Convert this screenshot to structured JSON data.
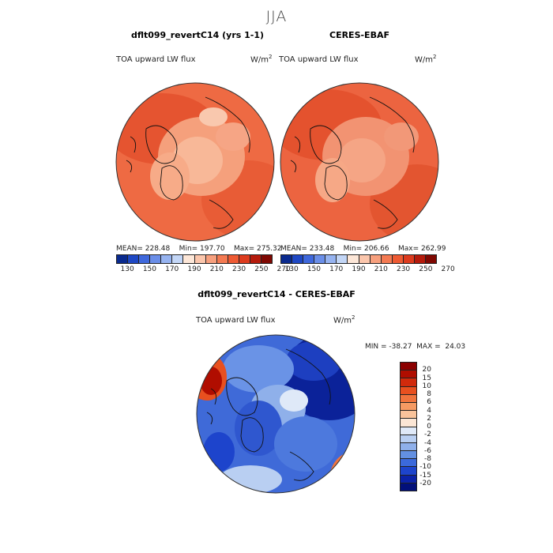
{
  "season": "JJA",
  "chart_data": [
    {
      "type": "heatmap",
      "projection": "north-polar-stereographic",
      "title": "dflt099_revertC14 (yrs 1-1)",
      "variable": "TOA upward LW flux",
      "units": "W/m",
      "units_sup": "2",
      "stats": {
        "mean": 228.48,
        "min": 197.7,
        "max": 275.32
      },
      "stats_text": "MEAN= 228.48    Min= 197.70    Max= 275.32",
      "colorbar": {
        "colors": [
          "#0a2a8e",
          "#1f48c4",
          "#3f68dc",
          "#6a8ee8",
          "#96b3f0",
          "#c3d6f6",
          "#fde7d8",
          "#fbc6ac",
          "#f7a07e",
          "#f47a52",
          "#ee5a33",
          "#dd3b1e",
          "#b51b0c",
          "#7f0802"
        ],
        "tick_labels": [
          "130",
          "150",
          "170",
          "190",
          "210",
          "230",
          "250",
          "270"
        ]
      }
    },
    {
      "type": "heatmap",
      "projection": "north-polar-stereographic",
      "title": "CERES-EBAF",
      "variable": "TOA upward LW flux",
      "units": "W/m",
      "units_sup": "2",
      "stats": {
        "mean": 233.48,
        "min": 206.66,
        "max": 262.99
      },
      "stats_text": "MEAN= 233.48    Min= 206.66    Max= 262.99",
      "colorbar": {
        "colors": [
          "#0a2a8e",
          "#1f48c4",
          "#3f68dc",
          "#6a8ee8",
          "#96b3f0",
          "#c3d6f6",
          "#fde7d8",
          "#fbc6ac",
          "#f7a07e",
          "#f47a52",
          "#ee5a33",
          "#dd3b1e",
          "#b51b0c",
          "#7f0802"
        ],
        "tick_labels": [
          "130",
          "150",
          "170",
          "190",
          "210",
          "230",
          "250",
          "270"
        ]
      }
    },
    {
      "type": "heatmap",
      "projection": "north-polar-stereographic",
      "title": "dflt099_revertC14 - CERES-EBAF",
      "variable": "TOA upward LW flux",
      "units": "W/m",
      "units_sup": "2",
      "stats": {
        "min": -38.27,
        "max": 24.03
      },
      "stats_text": "MIN = -38.27  MAX =  24.03",
      "colorbar": {
        "colors": [
          "#8b0000",
          "#b00d00",
          "#d12a0c",
          "#e8501f",
          "#f0743d",
          "#f59a63",
          "#f9c39b",
          "#fbe6d5",
          "#dfe9f8",
          "#b9cff2",
          "#8fb0ea",
          "#6390e2",
          "#3b69db",
          "#1d44cc",
          "#0b22a8",
          "#02107a"
        ],
        "tick_labels": [
          "20",
          "15",
          "10",
          "8",
          "6",
          "4",
          "2",
          "0",
          "-2",
          "-4",
          "-6",
          "-8",
          "-10",
          "-15",
          "-20"
        ]
      }
    }
  ]
}
